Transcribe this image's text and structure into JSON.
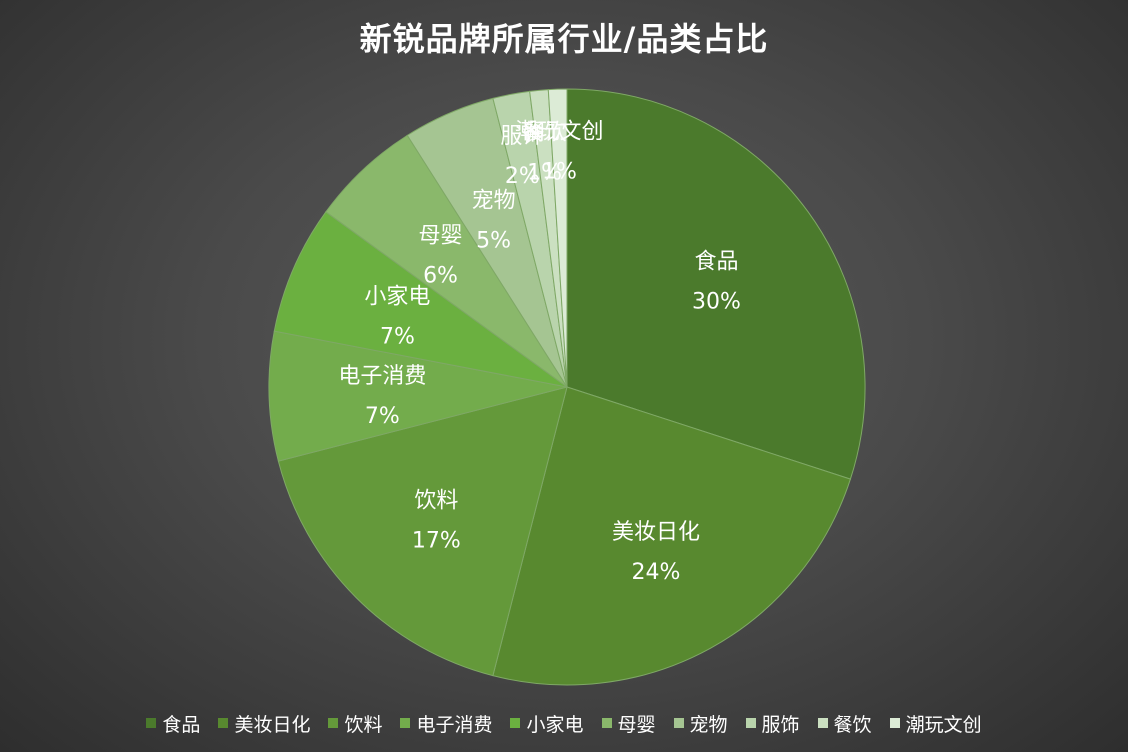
{
  "chart_data": {
    "type": "pie",
    "title": "新锐品牌所属行业/品类占比",
    "categories": [
      "食品",
      "美妆日化",
      "饮料",
      "电子消费",
      "小家电",
      "母婴",
      "宠物",
      "服饰",
      "餐饮",
      "潮玩文创"
    ],
    "values": [
      30,
      24,
      17,
      7,
      7,
      6,
      5,
      2,
      1,
      1
    ],
    "value_labels": [
      "30%",
      "24%",
      "17%",
      "7%",
      "7%",
      "6%",
      "5%",
      "2%",
      "1%",
      "1%"
    ],
    "colors": [
      "#4b7a2c",
      "#58892f",
      "#64993a",
      "#73ac4c",
      "#6bb040",
      "#8ab86b",
      "#a5c592",
      "#b9d4ac",
      "#cbe0c1",
      "#dcebd6"
    ],
    "legend_position": "bottom",
    "start_angle_deg": 0,
    "direction": "clockwise"
  }
}
